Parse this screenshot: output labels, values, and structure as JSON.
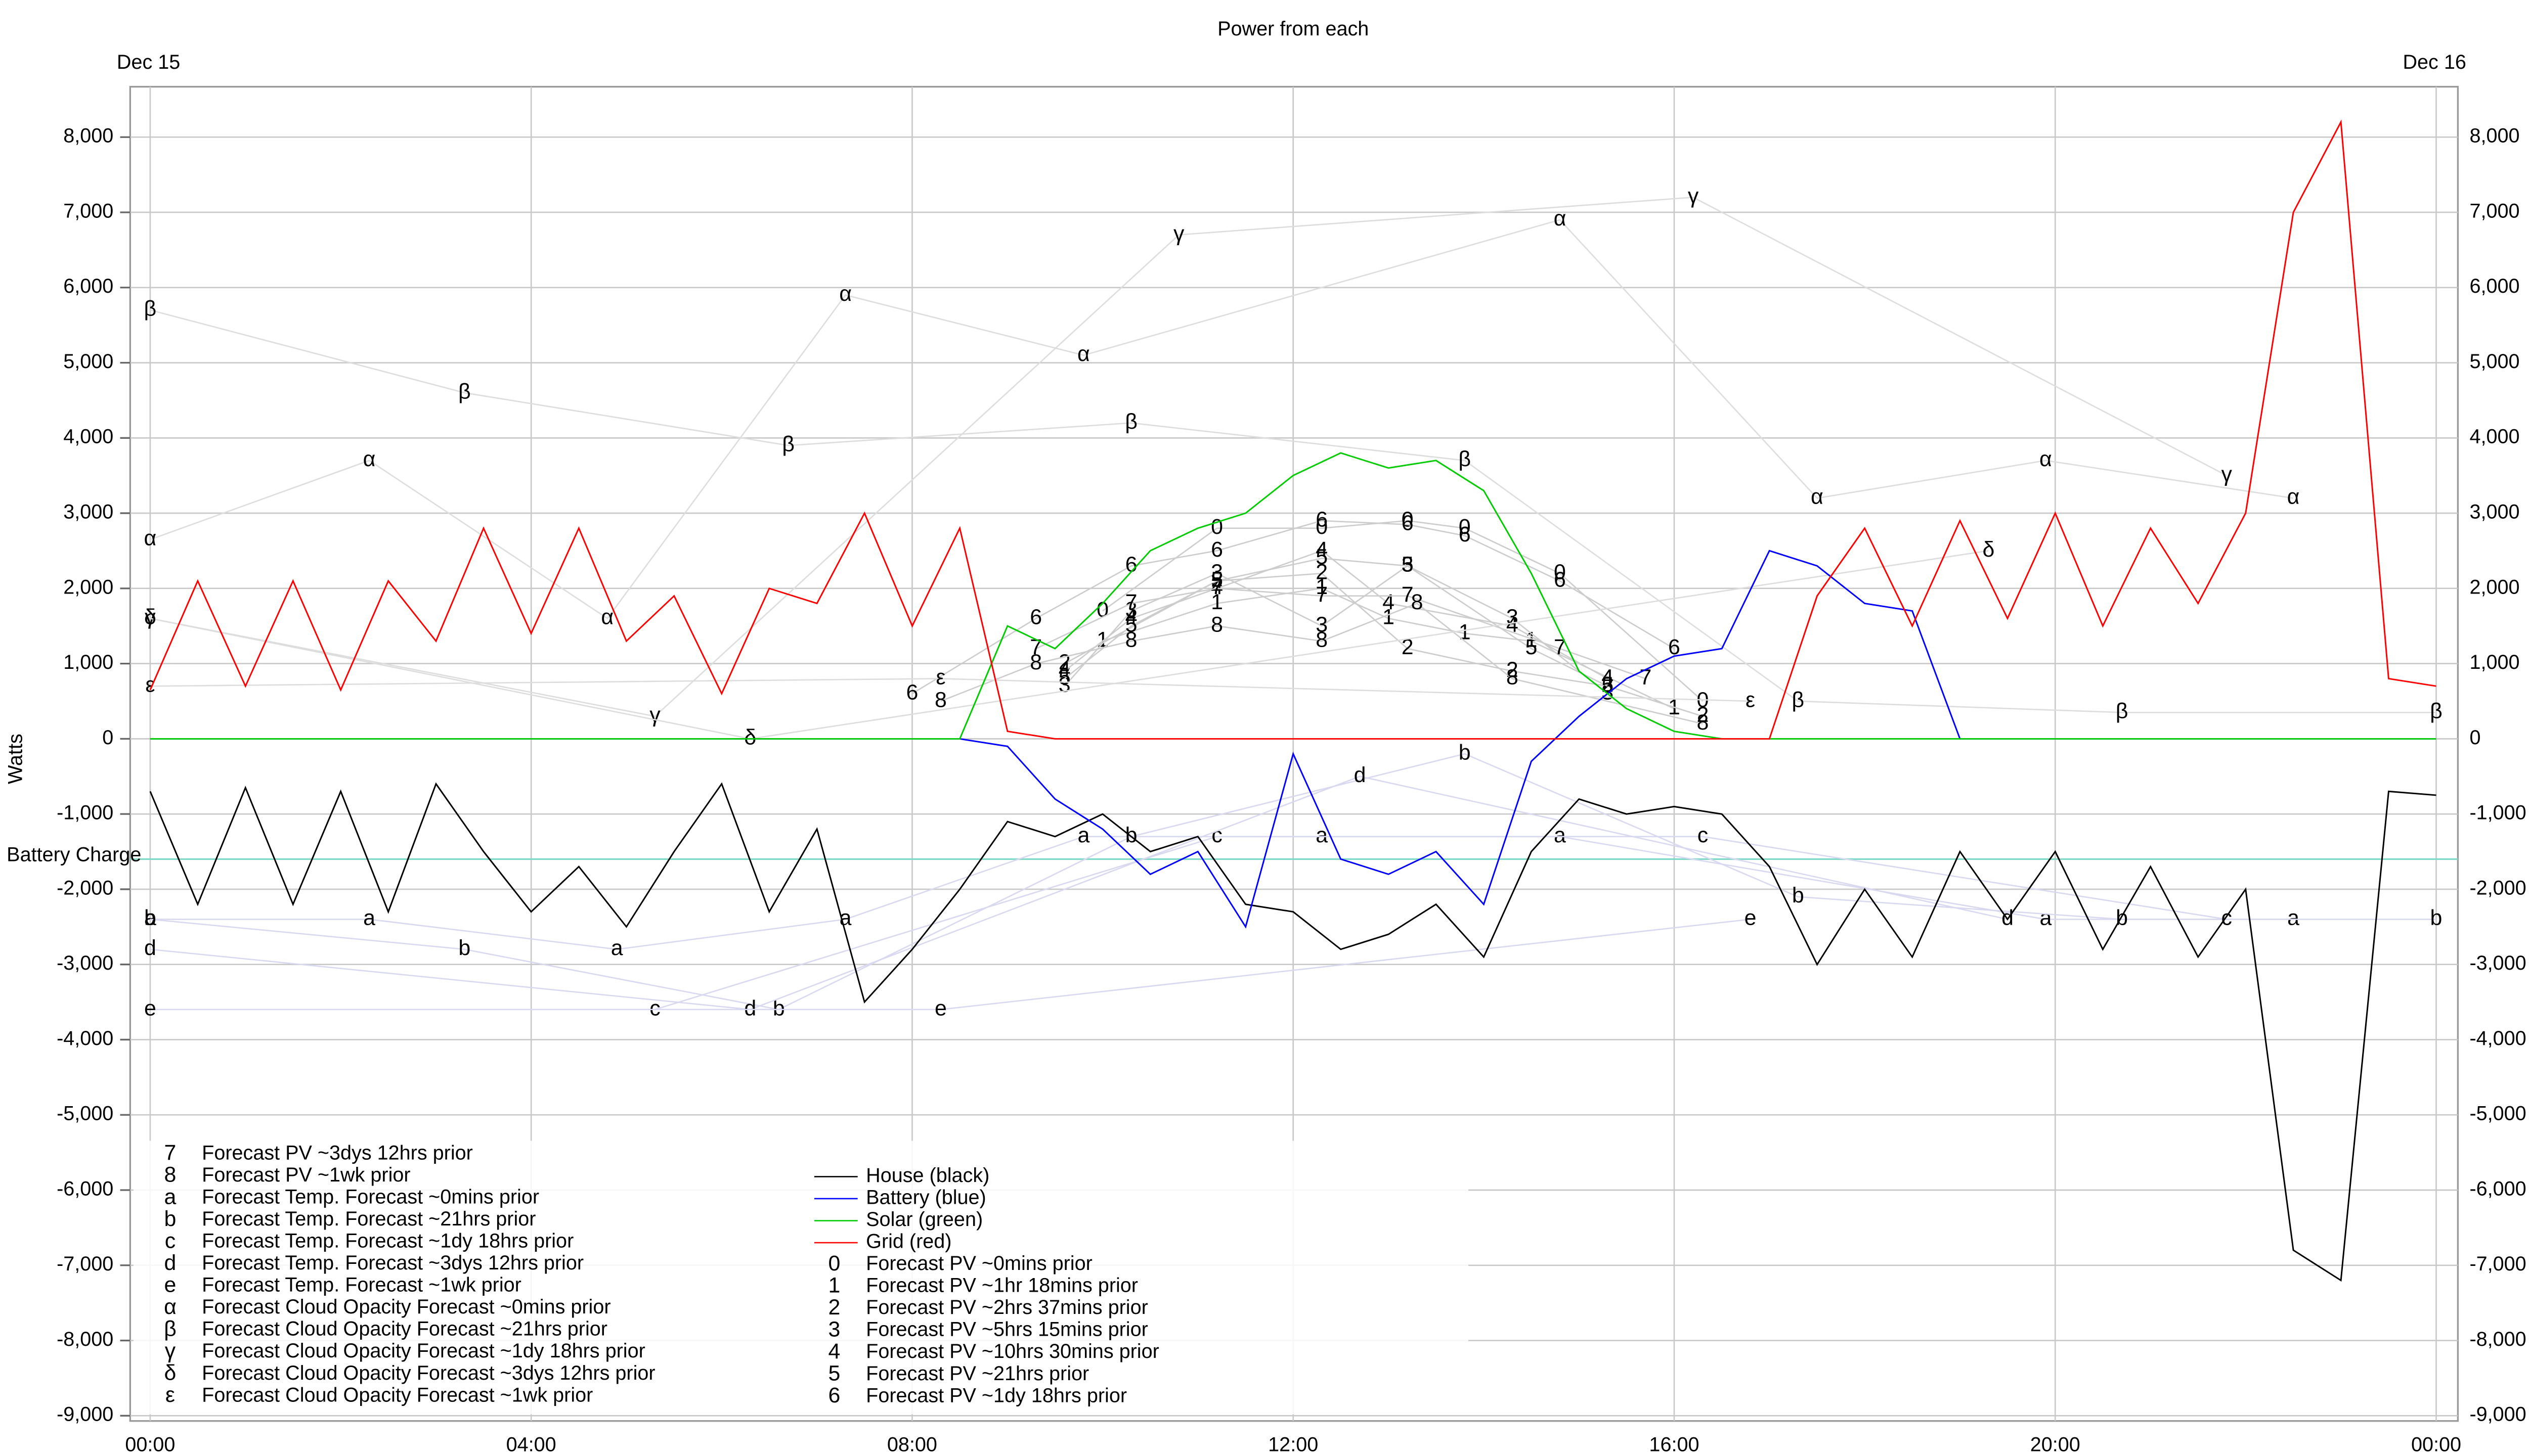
{
  "chart_data": {
    "type": "line",
    "title": "Power from each",
    "y_label": "Watts",
    "date_labels": [
      "Dec 15",
      "Dec 16"
    ],
    "annotations": [
      {
        "text": "Battery Charge",
        "y": -1600,
        "color": "#7fd8c8"
      }
    ],
    "xlim": [
      0,
      24
    ],
    "xticks": [
      {
        "value": 0,
        "label": "00:00"
      },
      {
        "value": 4,
        "label": "04:00"
      },
      {
        "value": 8,
        "label": "08:00"
      },
      {
        "value": 12,
        "label": "12:00"
      },
      {
        "value": 16,
        "label": "16:00"
      },
      {
        "value": 20,
        "label": "20:00"
      },
      {
        "value": 24,
        "label": "00:00"
      }
    ],
    "ylim": [
      -9070,
      8670
    ],
    "yticks": [
      {
        "value": -9000,
        "label": "-9,000"
      },
      {
        "value": -8000,
        "label": "-8,000"
      },
      {
        "value": -7000,
        "label": "-7,000"
      },
      {
        "value": -6000,
        "label": "-6,000"
      },
      {
        "value": -5000,
        "label": "-5,000"
      },
      {
        "value": -4000,
        "label": "-4,000"
      },
      {
        "value": -3000,
        "label": "-3,000"
      },
      {
        "value": -2000,
        "label": "-2,000"
      },
      {
        "value": -1000,
        "label": "-1,000"
      },
      0,
      {
        "value": 1000,
        "label": "1,000"
      },
      {
        "value": 2000,
        "label": "2,000"
      },
      {
        "value": 3000,
        "label": "3,000"
      },
      {
        "value": 4000,
        "label": "4,000"
      },
      {
        "value": 5000,
        "label": "5,000"
      },
      {
        "value": 6000,
        "label": "6,000"
      },
      {
        "value": 7000,
        "label": "7,000"
      },
      {
        "value": 8000,
        "label": "8,000"
      }
    ],
    "grid": true,
    "series": [
      {
        "name": "House (black)",
        "color": "#000000",
        "x": [
          0,
          0.5,
          1,
          1.5,
          2,
          2.5,
          3,
          3.5,
          4,
          4.5,
          5,
          5.5,
          6,
          6.5,
          7,
          7.5,
          8,
          8.5,
          9,
          9.5,
          10,
          10.5,
          11,
          11.5,
          12,
          12.5,
          13,
          13.5,
          14,
          14.5,
          15,
          15.5,
          16,
          16.5,
          17,
          17.5,
          18,
          18.5,
          19,
          19.5,
          20,
          20.5,
          21,
          21.5,
          22,
          22.5,
          23,
          23.5,
          24
        ],
        "values": [
          -700,
          -2200,
          -650,
          -2200,
          -700,
          -2300,
          -600,
          -1500,
          -2300,
          -1700,
          -2500,
          -1500,
          -600,
          -2300,
          -1200,
          -3500,
          -2800,
          -2000,
          -1100,
          -1300,
          -1000,
          -1500,
          -1300,
          -2200,
          -2300,
          -2800,
          -2600,
          -2200,
          -2900,
          -1500,
          -800,
          -1000,
          -900,
          -1000,
          -1700,
          -3000,
          -2000,
          -2900,
          -1500,
          -2400,
          -1500,
          -2800,
          -1700,
          -2900,
          -2000,
          -6800,
          -7200,
          -700,
          -750
        ]
      },
      {
        "name": "Battery (blue)",
        "color": "#0000ff",
        "x": [
          0,
          0.5,
          1,
          1.5,
          2,
          2.5,
          3,
          3.5,
          4,
          4.5,
          5,
          5.5,
          6,
          6.5,
          7,
          7.5,
          8,
          8.5,
          9,
          9.5,
          10,
          10.5,
          11,
          11.5,
          12,
          12.5,
          13,
          13.5,
          14,
          14.5,
          15,
          15.5,
          16,
          16.5,
          17,
          17.5,
          18,
          18.5,
          19,
          19.5,
          20,
          20.5,
          21,
          21.5,
          22,
          22.5,
          23,
          23.5,
          24
        ],
        "values": [
          0,
          0,
          0,
          0,
          0,
          0,
          0,
          0,
          0,
          0,
          0,
          0,
          0,
          0,
          0,
          0,
          0,
          0,
          -100,
          -800,
          -1200,
          -1800,
          -1500,
          -2500,
          -200,
          -1600,
          -1800,
          -1500,
          -2200,
          -300,
          300,
          800,
          1100,
          1200,
          2500,
          2300,
          1800,
          1700,
          0,
          0,
          0,
          0,
          0,
          0,
          0,
          0,
          0,
          0,
          0
        ]
      },
      {
        "name": "Solar (green)",
        "color": "#00cc00",
        "x": [
          0,
          0.5,
          1,
          1.5,
          2,
          2.5,
          3,
          3.5,
          4,
          4.5,
          5,
          5.5,
          6,
          6.5,
          7,
          7.5,
          8,
          8.5,
          9,
          9.5,
          10,
          10.5,
          11,
          11.5,
          12,
          12.5,
          13,
          13.5,
          14,
          14.5,
          15,
          15.5,
          16,
          16.5,
          17,
          17.5,
          18,
          18.5,
          19,
          19.5,
          20,
          20.5,
          21,
          21.5,
          22,
          22.5,
          23,
          23.5,
          24
        ],
        "values": [
          0,
          0,
          0,
          0,
          0,
          0,
          0,
          0,
          0,
          0,
          0,
          0,
          0,
          0,
          0,
          0,
          0,
          0,
          1500,
          1200,
          1800,
          2500,
          2800,
          3000,
          3500,
          3800,
          3600,
          3700,
          3300,
          2200,
          900,
          400,
          100,
          0,
          0,
          0,
          0,
          0,
          0,
          0,
          0,
          0,
          0,
          0,
          0,
          0,
          0,
          0,
          0
        ]
      },
      {
        "name": "Grid (red)",
        "color": "#ff0000",
        "x": [
          0,
          0.5,
          1,
          1.5,
          2,
          2.5,
          3,
          3.5,
          4,
          4.5,
          5,
          5.5,
          6,
          6.5,
          7,
          7.5,
          8,
          8.5,
          9,
          9.5,
          10,
          10.5,
          11,
          11.5,
          12,
          12.5,
          13,
          13.5,
          14,
          14.5,
          15,
          15.5,
          16,
          16.5,
          17,
          17.5,
          18,
          18.5,
          19,
          19.5,
          20,
          20.5,
          21,
          21.5,
          22,
          22.5,
          23,
          23.5,
          24
        ],
        "values": [
          650,
          2100,
          700,
          2100,
          650,
          2100,
          1300,
          2800,
          1400,
          2800,
          1300,
          1900,
          600,
          2000,
          1800,
          3000,
          1500,
          2800,
          100,
          0,
          0,
          0,
          0,
          0,
          0,
          0,
          0,
          0,
          0,
          0,
          0,
          0,
          0,
          0,
          0,
          1900,
          2800,
          1500,
          2900,
          1600,
          3000,
          1500,
          2800,
          1800,
          3000,
          7000,
          8200,
          800,
          700
        ]
      },
      {
        "name": "Forecast PV ~0mins prior",
        "symbol": "0",
        "color": "#cccccc",
        "x": [
          10,
          11.2,
          12.3,
          13.2,
          13.8,
          14.8,
          16.3
        ],
        "values": [
          1700,
          2800,
          2800,
          2900,
          2800,
          2200,
          500
        ]
      },
      {
        "name": "Forecast PV ~1hr 18mins prior",
        "symbol": "1",
        "color": "#cccccc",
        "x": [
          10,
          11.2,
          12.3,
          13,
          13.8,
          14.5,
          16
        ],
        "values": [
          1300,
          1800,
          2000,
          1600,
          1400,
          1300,
          400
        ]
      },
      {
        "name": "Forecast PV ~2hrs 37mins prior",
        "symbol": "2",
        "color": "#cccccc",
        "x": [
          9.6,
          11.2,
          12.3,
          13.2,
          14.3,
          15.3,
          16.3
        ],
        "values": [
          1000,
          2100,
          2200,
          1200,
          900,
          700,
          300
        ]
      },
      {
        "name": "Forecast PV ~5hrs 15mins prior",
        "symbol": "3",
        "color": "#cccccc",
        "x": [
          9.6,
          10.3,
          11.2,
          12.3,
          13.2,
          14.3,
          15.3
        ],
        "values": [
          700,
          1700,
          2200,
          1500,
          2300,
          1600,
          600
        ]
      },
      {
        "name": "Forecast PV ~10hrs 30mins prior",
        "symbol": "4",
        "color": "#cccccc",
        "x": [
          9.6,
          10.3,
          11.2,
          12.3,
          13,
          14.3,
          15.3
        ],
        "values": [
          900,
          1600,
          2000,
          2500,
          1800,
          1500,
          800
        ]
      },
      {
        "name": "Forecast PV ~21hrs prior",
        "symbol": "5",
        "color": "#cccccc",
        "x": [
          9.6,
          10.3,
          11.2,
          12.3,
          13.2,
          14.5,
          15.3
        ],
        "values": [
          800,
          1500,
          2100,
          2400,
          2300,
          1200,
          700
        ]
      },
      {
        "name": "Forecast PV ~1dy 18hrs prior",
        "symbol": "6",
        "color": "#cccccc",
        "x": [
          8,
          9.3,
          10.3,
          11.2,
          12.3,
          13.2,
          13.8,
          14.8,
          16
        ],
        "values": [
          600,
          1600,
          2300,
          2500,
          2900,
          2850,
          2700,
          2100,
          1200
        ]
      },
      {
        "name": "Forecast PV ~3dys 12hrs prior",
        "symbol": "7",
        "color": "#cccccc",
        "x": [
          9.3,
          10.3,
          11.2,
          12.3,
          13.2,
          14.8,
          15.7
        ],
        "values": [
          1200,
          1800,
          2000,
          1900,
          1900,
          1200,
          800
        ]
      },
      {
        "name": "Forecast PV ~1wk prior",
        "symbol": "8",
        "color": "#cccccc",
        "x": [
          8.3,
          9.3,
          10.3,
          11.2,
          12.3,
          13.3,
          14.3,
          16.3
        ],
        "values": [
          500,
          1000,
          1300,
          1500,
          1300,
          1800,
          800,
          200
        ]
      },
      {
        "name": "Forecast Temp. Forecast ~0mins prior",
        "symbol": "a",
        "color": "#d8d8f0",
        "x": [
          0,
          2.3,
          4.9,
          7.3,
          9.8,
          12.3,
          14.8,
          19.9,
          22.5
        ],
        "values": [
          -2400,
          -2400,
          -2800,
          -2400,
          -1300,
          -1300,
          -1300,
          -2400,
          -2400
        ]
      },
      {
        "name": "Forecast Temp. Forecast ~21hrs prior",
        "symbol": "b",
        "color": "#d8d8f0",
        "x": [
          0,
          3.3,
          6.6,
          10.3,
          13.8,
          17.3,
          20.7,
          24
        ],
        "values": [
          -2400,
          -2800,
          -3600,
          -1300,
          -200,
          -2100,
          -2400,
          -2400
        ]
      },
      {
        "name": "Forecast Temp. Forecast ~1dy 18hrs prior",
        "symbol": "c",
        "color": "#d8d8f0",
        "x": [
          5.3,
          11.2,
          16.3,
          21.8
        ],
        "values": [
          -3600,
          -1300,
          -1300,
          -2400
        ]
      },
      {
        "name": "Forecast Temp. Forecast ~3dys 12hrs prior",
        "symbol": "d",
        "color": "#d8d8f0",
        "x": [
          0,
          6.3,
          12.7,
          19.5
        ],
        "values": [
          -2800,
          -3600,
          -500,
          -2400
        ]
      },
      {
        "name": "Forecast Temp. Forecast ~1wk prior",
        "symbol": "e",
        "color": "#d8d8f0",
        "x": [
          0,
          8.3,
          16.8
        ],
        "values": [
          -3600,
          -3600,
          -2400
        ]
      },
      {
        "name": "Forecast Cloud Opacity Forecast ~0mins prior",
        "symbol": "α",
        "color": "#dddddd",
        "x": [
          0,
          2.3,
          4.8,
          7.3,
          9.8,
          14.8,
          17.5,
          19.9,
          22.5
        ],
        "values": [
          2650,
          3700,
          1600,
          5900,
          5100,
          6900,
          3200,
          3700,
          3200
        ]
      },
      {
        "name": "Forecast Cloud Opacity Forecast ~21hrs prior",
        "symbol": "β",
        "color": "#dddddd",
        "x": [
          0,
          3.3,
          6.7,
          10.3,
          13.8,
          17.3,
          20.7,
          24
        ],
        "values": [
          5700,
          4600,
          3900,
          4200,
          3700,
          500,
          350,
          350
        ]
      },
      {
        "name": "Forecast Cloud Opacity Forecast ~1dy 18hrs prior",
        "symbol": "γ",
        "color": "#dddddd",
        "x": [
          0,
          5.3,
          10.8,
          16.2,
          21.8
        ],
        "values": [
          1600,
          300,
          6700,
          7200,
          3500
        ]
      },
      {
        "name": "Forecast Cloud Opacity Forecast ~3dys 12hrs prior",
        "symbol": "δ",
        "color": "#dddddd",
        "x": [
          0,
          6.3,
          19.3
        ],
        "values": [
          1600,
          0,
          2500
        ]
      },
      {
        "name": "Forecast Cloud Opacity Forecast ~1wk prior",
        "symbol": "ε",
        "color": "#dddddd",
        "x": [
          0,
          8.3,
          16.8
        ],
        "values": [
          700,
          800,
          500
        ]
      }
    ]
  }
}
